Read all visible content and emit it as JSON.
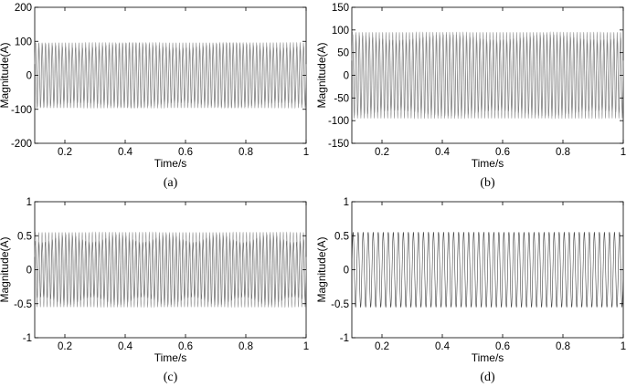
{
  "chart_data": [
    {
      "type": "line",
      "caption": "(a)",
      "xlabel": "Time/s",
      "ylabel": "Magnitude(A)",
      "xlim": [
        0.1,
        1
      ],
      "ylim": [
        -200,
        200
      ],
      "x_ticks": [
        0.2,
        0.4,
        0.6,
        0.8,
        1
      ],
      "x_tick_labels": [
        "0.2",
        "0.4",
        "0.6",
        "0.8",
        "1"
      ],
      "y_ticks": [
        200,
        100,
        0,
        -100,
        -200
      ],
      "y_tick_labels": [
        "200",
        "100",
        "0",
        "-100",
        "-200"
      ],
      "grid": false,
      "series": [
        {
          "frequency_hz": 90,
          "amplitude": 88,
          "beat_amplitude": 7,
          "beat_frequency_hz": 3,
          "color": "#555555"
        },
        {
          "frequency_hz": 90,
          "amplitude": 96,
          "beat_amplitude": 0,
          "beat_frequency_hz": 0,
          "color": "#9a9a9a"
        }
      ]
    },
    {
      "type": "line",
      "caption": "(b)",
      "xlabel": "Time/s",
      "ylabel": "Magnitude(A)",
      "xlim": [
        0.1,
        1
      ],
      "ylim": [
        -150,
        150
      ],
      "x_ticks": [
        0.2,
        0.4,
        0.6,
        0.8,
        1
      ],
      "x_tick_labels": [
        "0.2",
        "0.4",
        "0.6",
        "0.8",
        "1"
      ],
      "y_ticks": [
        150,
        100,
        50,
        0,
        -50,
        -100,
        -150
      ],
      "y_tick_labels": [
        "150",
        "100",
        "50",
        "0",
        "-50",
        "-100",
        "-150"
      ],
      "grid": false,
      "series": [
        {
          "frequency_hz": 90,
          "amplitude": 84,
          "beat_amplitude": 6,
          "beat_frequency_hz": 3,
          "color": "#555555"
        },
        {
          "frequency_hz": 90,
          "amplitude": 95,
          "beat_amplitude": 0,
          "beat_frequency_hz": 0,
          "color": "#9a9a9a"
        }
      ]
    },
    {
      "type": "line",
      "caption": "(c)",
      "xlabel": "Time/s",
      "ylabel": "Magnitude(A)",
      "xlim": [
        0.1,
        1
      ],
      "ylim": [
        -1,
        1
      ],
      "x_ticks": [
        0.2,
        0.4,
        0.6,
        0.8,
        1
      ],
      "x_tick_labels": [
        "0.2",
        "0.4",
        "0.6",
        "0.8",
        "1"
      ],
      "y_ticks": [
        1,
        0.5,
        0,
        -0.5,
        -1
      ],
      "y_tick_labels": [
        "1",
        "0.5",
        "0",
        "-0.5",
        "-1"
      ],
      "grid": false,
      "series": [
        {
          "frequency_hz": 90,
          "amplitude": 0.46,
          "beat_amplitude": 0.06,
          "beat_frequency_hz": 6,
          "color": "#444444"
        },
        {
          "frequency_hz": 90,
          "amplitude": 0.55,
          "beat_amplitude": 0,
          "beat_frequency_hz": 0,
          "color": "#999999"
        }
      ]
    },
    {
      "type": "line",
      "caption": "(d)",
      "xlabel": "Time/s",
      "ylabel": "Magnitude(A)",
      "xlim": [
        0.1,
        1
      ],
      "ylim": [
        -1,
        1
      ],
      "x_ticks": [
        0.2,
        0.4,
        0.6,
        0.8,
        1
      ],
      "x_tick_labels": [
        "0.2",
        "0.4",
        "0.6",
        "0.8",
        "1"
      ],
      "y_ticks": [
        1,
        0.5,
        0,
        -0.5,
        -1
      ],
      "y_tick_labels": [
        "1",
        "0.5",
        "0",
        "-0.5",
        "-1"
      ],
      "grid": false,
      "series": [
        {
          "frequency_hz": 60,
          "amplitude": 0.55,
          "beat_amplitude": 0,
          "beat_frequency_hz": 0,
          "color": "#333333"
        }
      ]
    }
  ]
}
